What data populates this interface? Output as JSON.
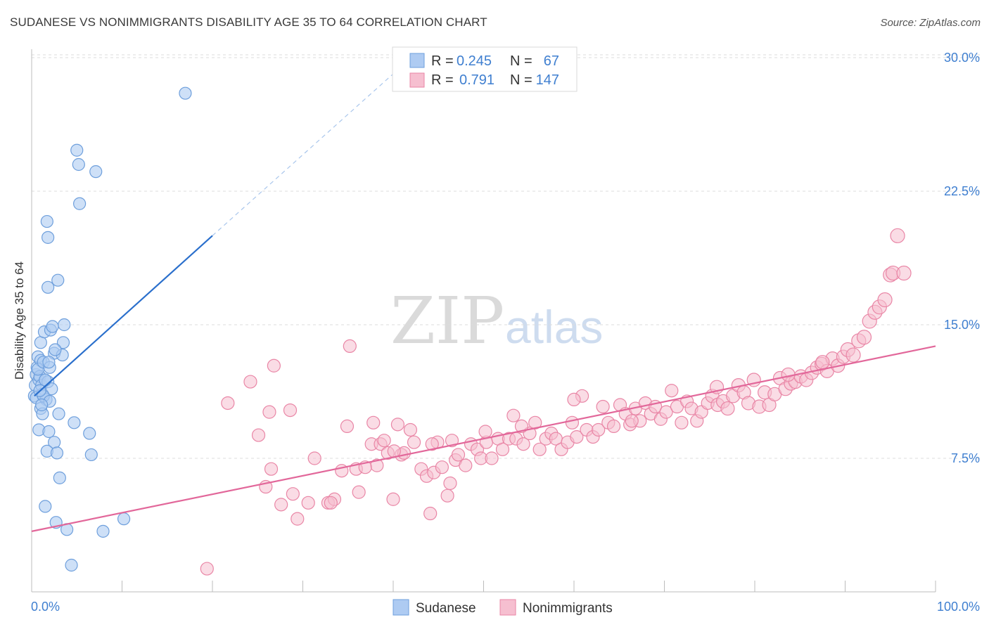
{
  "title": "SUDANESE VS NONIMMIGRANTS DISABILITY AGE 35 TO 64 CORRELATION CHART",
  "source": "Source: ZipAtlas.com",
  "watermark": {
    "part1": "ZIP",
    "part2": "atlas"
  },
  "legend_top": [
    {
      "r_label": "R =",
      "r_value": "0.245",
      "n_label": "N =",
      "n_value": "67"
    },
    {
      "r_label": "R =",
      "r_value": "0.791",
      "n_label": "N =",
      "n_value": "147"
    }
  ],
  "chart_data": {
    "type": "scatter",
    "title": "SUDANESE VS NONIMMIGRANTS DISABILITY AGE 35 TO 64 CORRELATION CHART",
    "xlabel": "",
    "ylabel": "Disability Age 35 to 64",
    "xlim": [
      0,
      100
    ],
    "ylim": [
      0,
      31.5
    ],
    "x_tick_labels": [
      "0.0%",
      "100.0%"
    ],
    "y_ticks": [
      7.5,
      15.0,
      22.5,
      30.0
    ],
    "y_tick_labels": [
      "7.5%",
      "15.0%",
      "22.5%",
      "30.0%"
    ],
    "grid": true,
    "legend_position": "top-center",
    "colors": {
      "sudanese_fill": "#aecbf2",
      "sudanese_stroke": "#6e9fdc",
      "sudanese_line": "#2a6fcc",
      "nonimm_fill": "#f6bfd0",
      "nonimm_stroke": "#e986a6",
      "nonimm_line": "#e2679a",
      "accent_text": "#3f7fd0",
      "grid": "#dcdcdc"
    },
    "series": [
      {
        "name": "Sudanese",
        "trend": {
          "x": [
            0.3,
            20.0
          ],
          "y": [
            11.0,
            20.0
          ],
          "dashed_to": [
            42.0,
            30.0
          ]
        },
        "points": [
          [
            0.3,
            11.0
          ],
          [
            0.4,
            11.6
          ],
          [
            0.5,
            12.2
          ],
          [
            0.6,
            12.6
          ],
          [
            0.7,
            13.2
          ],
          [
            0.8,
            11.9
          ],
          [
            0.5,
            10.9
          ],
          [
            0.9,
            12.1
          ],
          [
            1.0,
            13.0
          ],
          [
            1.1,
            11.6
          ],
          [
            0.7,
            12.5
          ],
          [
            1.3,
            12.9
          ],
          [
            1.5,
            11.9
          ],
          [
            1.2,
            11.1
          ],
          [
            1.8,
            11.8
          ],
          [
            2.0,
            12.6
          ],
          [
            2.2,
            11.4
          ],
          [
            1.6,
            10.8
          ],
          [
            2.5,
            13.4
          ],
          [
            3.4,
            13.3
          ],
          [
            3.5,
            14.0
          ],
          [
            1.0,
            14.0
          ],
          [
            1.4,
            14.6
          ],
          [
            2.1,
            14.7
          ],
          [
            2.3,
            14.9
          ],
          [
            3.6,
            15.0
          ],
          [
            1.8,
            17.1
          ],
          [
            2.9,
            17.5
          ],
          [
            1.8,
            19.9
          ],
          [
            1.7,
            20.8
          ],
          [
            5.3,
            21.8
          ],
          [
            5.2,
            24.0
          ],
          [
            5.0,
            24.8
          ],
          [
            7.1,
            23.6
          ],
          [
            17.0,
            28.0
          ],
          [
            1.0,
            10.3
          ],
          [
            1.2,
            10.0
          ],
          [
            0.8,
            9.1
          ],
          [
            1.9,
            9.0
          ],
          [
            3.0,
            10.0
          ],
          [
            4.7,
            9.5
          ],
          [
            6.4,
            8.9
          ],
          [
            2.5,
            8.4
          ],
          [
            1.7,
            7.9
          ],
          [
            2.8,
            7.8
          ],
          [
            6.6,
            7.7
          ],
          [
            3.1,
            6.4
          ],
          [
            1.5,
            4.8
          ],
          [
            2.7,
            3.9
          ],
          [
            3.9,
            3.5
          ],
          [
            7.9,
            3.4
          ],
          [
            10.2,
            4.1
          ],
          [
            4.4,
            1.5
          ],
          [
            1.3,
            11.0
          ],
          [
            2.0,
            10.7
          ],
          [
            1.5,
            11.9
          ],
          [
            0.9,
            11.3
          ],
          [
            1.9,
            12.9
          ],
          [
            2.6,
            13.6
          ],
          [
            1.1,
            10.5
          ]
        ]
      },
      {
        "name": "Nonimmigrants",
        "trend": {
          "x": [
            0.0,
            100.0
          ],
          "y": [
            3.4,
            13.8
          ]
        },
        "points": [
          [
            19.4,
            1.3
          ],
          [
            21.7,
            10.6
          ],
          [
            24.2,
            11.8
          ],
          [
            25.1,
            8.8
          ],
          [
            25.9,
            5.9
          ],
          [
            26.3,
            10.1
          ],
          [
            26.5,
            6.9
          ],
          [
            26.8,
            12.7
          ],
          [
            27.6,
            4.9
          ],
          [
            28.6,
            10.2
          ],
          [
            28.9,
            5.5
          ],
          [
            29.4,
            4.1
          ],
          [
            30.6,
            5.0
          ],
          [
            31.3,
            7.5
          ],
          [
            32.8,
            5.0
          ],
          [
            33.5,
            5.2
          ],
          [
            34.3,
            6.8
          ],
          [
            34.9,
            9.3
          ],
          [
            35.2,
            13.8
          ],
          [
            35.9,
            6.9
          ],
          [
            36.2,
            5.6
          ],
          [
            37.6,
            8.3
          ],
          [
            37.8,
            9.5
          ],
          [
            38.2,
            7.1
          ],
          [
            38.6,
            8.3
          ],
          [
            39.0,
            8.5
          ],
          [
            39.4,
            7.8
          ],
          [
            40.0,
            5.2
          ],
          [
            40.5,
            9.4
          ],
          [
            40.9,
            7.7
          ],
          [
            41.2,
            7.8
          ],
          [
            41.9,
            9.1
          ],
          [
            42.3,
            8.4
          ],
          [
            43.1,
            6.9
          ],
          [
            43.7,
            6.5
          ],
          [
            44.1,
            4.4
          ],
          [
            44.5,
            6.7
          ],
          [
            44.9,
            8.4
          ],
          [
            45.4,
            7.0
          ],
          [
            46.0,
            5.4
          ],
          [
            46.3,
            6.1
          ],
          [
            46.9,
            7.4
          ],
          [
            47.2,
            7.7
          ],
          [
            48.0,
            7.1
          ],
          [
            48.6,
            8.3
          ],
          [
            49.3,
            8.0
          ],
          [
            49.7,
            7.5
          ],
          [
            50.3,
            8.4
          ],
          [
            50.9,
            7.5
          ],
          [
            51.6,
            8.6
          ],
          [
            52.1,
            8.0
          ],
          [
            52.8,
            8.6
          ],
          [
            53.3,
            9.9
          ],
          [
            53.6,
            8.6
          ],
          [
            54.4,
            8.3
          ],
          [
            55.1,
            8.9
          ],
          [
            55.7,
            9.5
          ],
          [
            56.2,
            8.0
          ],
          [
            56.9,
            8.6
          ],
          [
            57.5,
            8.9
          ],
          [
            58.0,
            8.6
          ],
          [
            58.6,
            8.0
          ],
          [
            59.3,
            8.4
          ],
          [
            59.8,
            9.5
          ],
          [
            60.3,
            8.7
          ],
          [
            60.9,
            11.0
          ],
          [
            61.4,
            9.1
          ],
          [
            62.1,
            8.7
          ],
          [
            62.7,
            9.1
          ],
          [
            63.2,
            10.4
          ],
          [
            63.8,
            9.5
          ],
          [
            64.4,
            9.3
          ],
          [
            65.1,
            10.5
          ],
          [
            65.7,
            10.0
          ],
          [
            66.2,
            9.4
          ],
          [
            66.8,
            10.3
          ],
          [
            67.3,
            9.6
          ],
          [
            67.9,
            10.6
          ],
          [
            68.5,
            10.0
          ],
          [
            69.0,
            10.4
          ],
          [
            69.6,
            9.7
          ],
          [
            70.2,
            10.1
          ],
          [
            70.8,
            11.3
          ],
          [
            71.4,
            10.4
          ],
          [
            71.9,
            9.5
          ],
          [
            72.5,
            10.7
          ],
          [
            73.0,
            10.3
          ],
          [
            73.6,
            9.6
          ],
          [
            74.1,
            10.1
          ],
          [
            74.8,
            10.6
          ],
          [
            75.3,
            11.0
          ],
          [
            75.9,
            10.5
          ],
          [
            76.5,
            10.7
          ],
          [
            77.0,
            10.3
          ],
          [
            77.6,
            11.0
          ],
          [
            78.2,
            11.6
          ],
          [
            78.8,
            11.2
          ],
          [
            79.3,
            10.6
          ],
          [
            79.9,
            11.9
          ],
          [
            80.5,
            10.4
          ],
          [
            81.1,
            11.2
          ],
          [
            81.6,
            10.5
          ],
          [
            82.2,
            11.1
          ],
          [
            82.8,
            12.0
          ],
          [
            83.4,
            11.4
          ],
          [
            84.0,
            11.7
          ],
          [
            84.5,
            11.8
          ],
          [
            85.1,
            12.1
          ],
          [
            85.7,
            11.9
          ],
          [
            86.3,
            12.3
          ],
          [
            86.9,
            12.6
          ],
          [
            87.4,
            12.8
          ],
          [
            88.0,
            12.4
          ],
          [
            88.6,
            13.1
          ],
          [
            89.2,
            12.7
          ],
          [
            89.8,
            13.2
          ],
          [
            90.3,
            13.6
          ],
          [
            90.9,
            13.3
          ],
          [
            91.5,
            14.1
          ],
          [
            92.1,
            14.3
          ],
          [
            92.7,
            15.2
          ],
          [
            93.3,
            15.7
          ],
          [
            93.8,
            16.0
          ],
          [
            94.4,
            16.4
          ],
          [
            95.0,
            17.8
          ],
          [
            95.3,
            17.9
          ],
          [
            95.8,
            20.0
          ],
          [
            96.5,
            17.9
          ],
          [
            66.4,
            9.6
          ],
          [
            75.8,
            11.5
          ],
          [
            83.7,
            12.2
          ],
          [
            87.5,
            12.9
          ],
          [
            60.0,
            10.8
          ],
          [
            54.2,
            9.3
          ],
          [
            50.2,
            9.0
          ],
          [
            46.5,
            8.5
          ],
          [
            44.3,
            8.3
          ],
          [
            40.1,
            7.9
          ],
          [
            36.9,
            7.0
          ],
          [
            33.1,
            5.0
          ]
        ]
      }
    ]
  },
  "legend_bottom": [
    {
      "label": "Sudanese"
    },
    {
      "label": "Nonimmigrants"
    }
  ]
}
